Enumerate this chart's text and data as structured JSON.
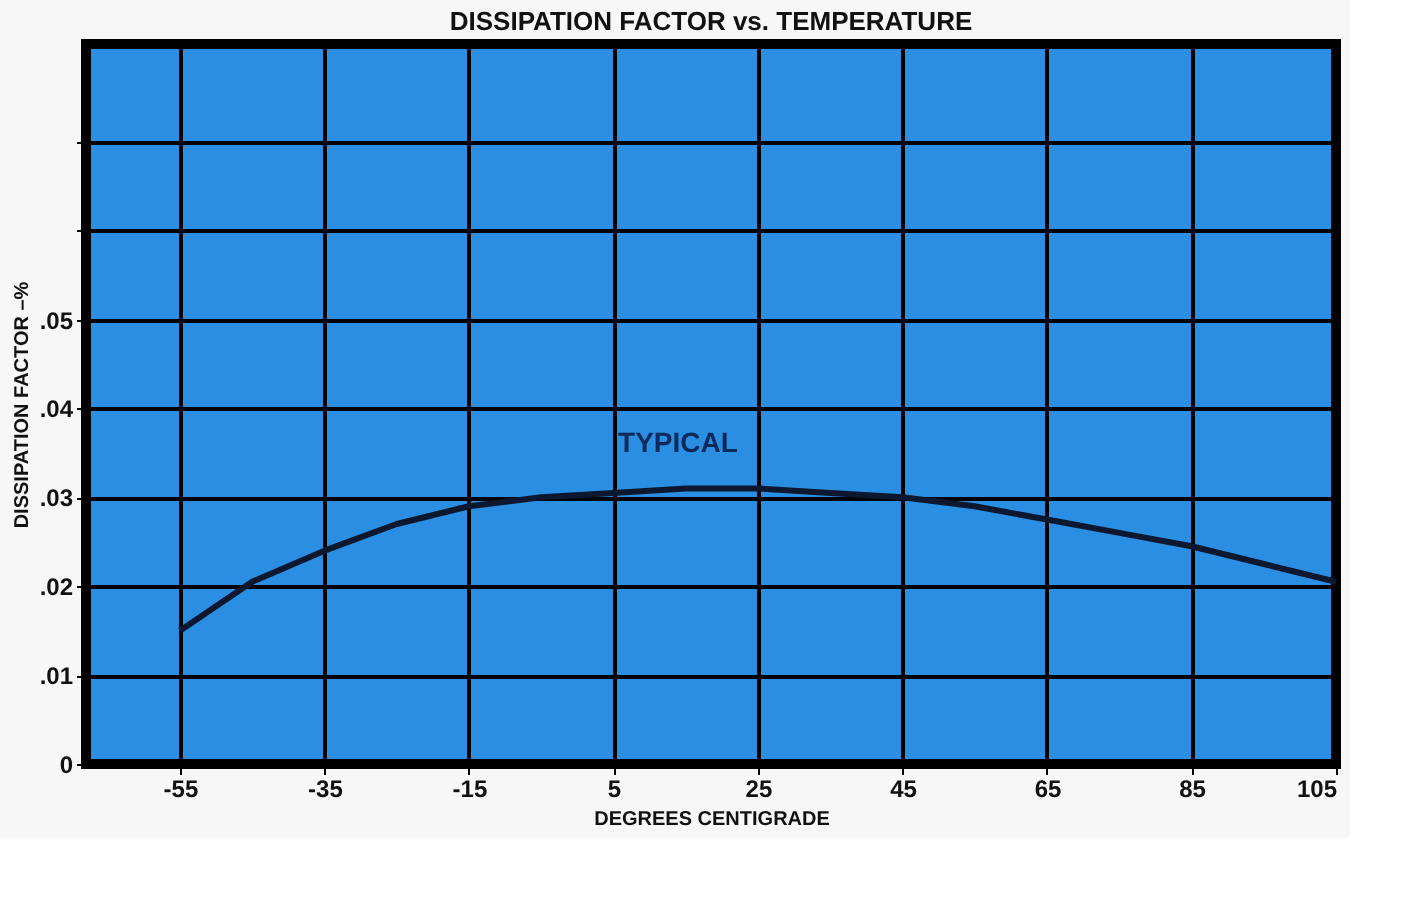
{
  "chart_data": {
    "type": "line",
    "title": "DISSIPATION FACTOR vs. TEMPERATURE",
    "xlabel": "DEGREES CENTIGRADE",
    "ylabel": "DISSIPATION FACTOR –%",
    "x": [
      -55,
      -45,
      -35,
      -25,
      -15,
      -5,
      5,
      15,
      25,
      35,
      45,
      55,
      65,
      75,
      85,
      95,
      105
    ],
    "series": [
      {
        "color": "#0b1830",
        "values": [
          0.015,
          0.0205,
          0.024,
          0.027,
          0.029,
          0.03,
          0.0305,
          0.031,
          0.031,
          0.0305,
          0.03,
          0.029,
          0.0275,
          0.026,
          0.0245,
          0.0225,
          0.0205
        ]
      }
    ],
    "xlim": [
      -68,
      105
    ],
    "xticks": [
      -55,
      -35,
      -15,
      5,
      25,
      45,
      65,
      85,
      105
    ],
    "ylim": [
      0,
      0.081
    ],
    "yticks": [
      0,
      {
        "value": 0.01,
        "label": ".01"
      },
      {
        "value": 0.02,
        "label": ".02"
      },
      {
        "value": 0.03,
        "label": ".03"
      },
      {
        "value": 0.04,
        "label": ".04"
      },
      {
        "value": 0.05,
        "label": ".05"
      },
      {
        "value": 0.06,
        "label": null
      },
      {
        "value": 0.07,
        "label": null
      }
    ],
    "annotations": [
      {
        "text": "TYPICAL",
        "x": 25,
        "y": 0.031
      }
    ],
    "grid": true,
    "legend": false,
    "marker": "none",
    "line_style": "solid"
  }
}
